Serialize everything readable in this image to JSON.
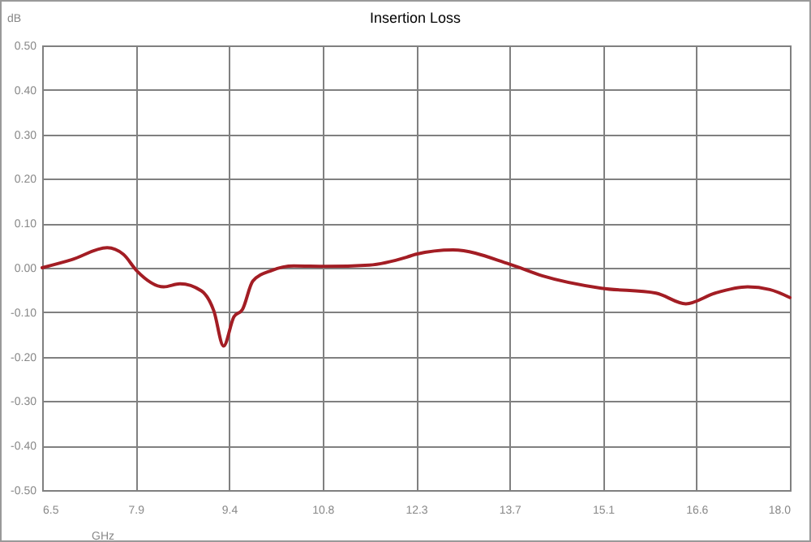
{
  "chart_data": {
    "type": "line",
    "title": "Insertion Loss",
    "xlabel": "GHz",
    "ylabel": "dB",
    "x": [
      6.5,
      6.95,
      7.5,
      7.75,
      7.95,
      8.37,
      8.62,
      8.95,
      9.14,
      9.29,
      9.45,
      9.58,
      9.74,
      10.03,
      10.37,
      10.87,
      11.53,
      12.11,
      12.24,
      12.82,
      13.69,
      14.19,
      15.1,
      15.94,
      16.4,
      16.85,
      17.35,
      17.69,
      18.0
    ],
    "series": [
      {
        "color": "#a31d24",
        "values": [
          0.0,
          0.018,
          0.045,
          0.03,
          -0.006,
          -0.043,
          -0.036,
          -0.052,
          -0.097,
          -0.176,
          -0.11,
          -0.094,
          -0.03,
          -0.006,
          0.004,
          0.003,
          0.006,
          0.024,
          0.03,
          0.04,
          0.008,
          -0.018,
          -0.046,
          -0.057,
          -0.081,
          -0.057,
          -0.043,
          -0.049,
          -0.067
        ]
      }
    ],
    "xlim": [
      6.5,
      18.0
    ],
    "xticks": [
      6.5,
      {
        "value": 7.9375,
        "label": "7.9"
      },
      {
        "value": 9.375,
        "label": "9.4"
      },
      {
        "value": 10.8125,
        "label": "10.8"
      },
      {
        "value": 12.25,
        "label": "12.3"
      },
      {
        "value": 13.6875,
        "label": "13.7"
      },
      {
        "value": 15.125,
        "label": "15.1"
      },
      {
        "value": 16.5625,
        "label": "16.6"
      },
      {
        "value": 18.0,
        "label": "18.0"
      }
    ],
    "ylim": [
      -0.5,
      0.5
    ],
    "yticks": [
      {
        "value": -0.5,
        "label": "-0.50"
      },
      {
        "value": -0.4,
        "label": "-0.40"
      },
      {
        "value": -0.3,
        "label": "-0.30"
      },
      {
        "value": -0.2,
        "label": "-0.20"
      },
      {
        "value": -0.1,
        "label": "-0.10"
      },
      {
        "value": 0,
        "label": "0.00"
      },
      {
        "value": 0.1,
        "label": "0.10"
      },
      {
        "value": 0.2,
        "label": "0.20"
      },
      {
        "value": 0.3,
        "label": "0.30"
      },
      {
        "value": 0.4,
        "label": "0.40"
      },
      {
        "value": 0.5,
        "label": "0.50"
      }
    ],
    "grid": true,
    "marker": "none",
    "line_style": "solid"
  }
}
